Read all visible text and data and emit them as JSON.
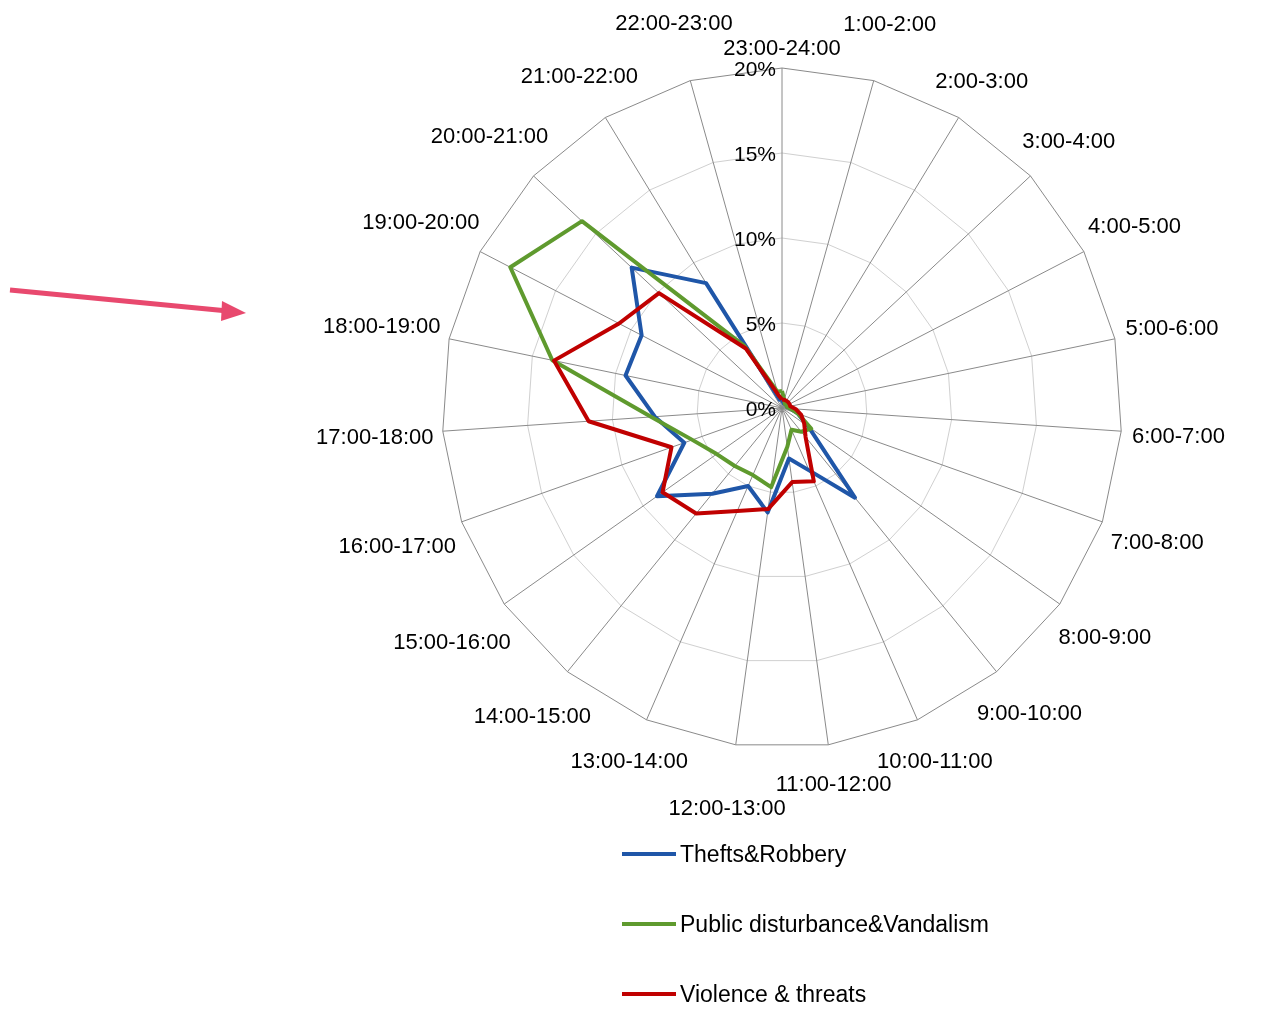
{
  "chart_data": {
    "type": "radar",
    "categories": [
      "23:00-24:00",
      "1:00-2:00",
      "2:00-3:00",
      "3:00-4:00",
      "4:00-5:00",
      "5:00-6:00",
      "6:00-7:00",
      "7:00-8:00",
      "8:00-9:00",
      "9:00-10:00",
      "10:00-11:00",
      "11:00-12:00",
      "12:00-13:00",
      "13:00-14:00",
      "14:00-15:00",
      "15:00-16:00",
      "16:00-17:00",
      "17:00-18:00",
      "18:00-19:00",
      "19:00-20:00",
      "20:00-21:00",
      "21:00-22:00",
      "22:00-23:00"
    ],
    "series": [
      {
        "name": "Thefts&Robbery",
        "color": "#1f56a8",
        "values": [
          0.5,
          0.3,
          0.3,
          0.3,
          0.3,
          0.3,
          0.5,
          1.0,
          1.9,
          6.8,
          4.0,
          3.0,
          6.2,
          5.0,
          6.5,
          9.0,
          6.1,
          7.5,
          9.4,
          9.3,
          12.1,
          8.6,
          0.5
        ]
      },
      {
        "name": "Public disturbance&Vandalism",
        "color": "#5f9a2e",
        "values": [
          1.0,
          0.5,
          0.3,
          0.3,
          0.3,
          0.3,
          0.5,
          1.0,
          2.1,
          1.8,
          1.4,
          2.3,
          4.7,
          4.3,
          4.4,
          4.7,
          5.6,
          7.7,
          13.8,
          18.0,
          16.1,
          4.3,
          1.0
        ]
      },
      {
        "name": "Violence & threats",
        "color": "#c00000",
        "values": [
          0.5,
          0.5,
          0.5,
          0.5,
          0.5,
          0.5,
          0.8,
          1.2,
          1.6,
          2.2,
          4.7,
          4.4,
          6.0,
          6.6,
          8.0,
          8.6,
          6.9,
          11.4,
          13.7,
          10.8,
          9.9,
          4.1,
          0.8
        ]
      }
    ],
    "ylim": [
      0,
      20
    ],
    "yticks": [
      {
        "value": 0,
        "label": "0%"
      },
      {
        "value": 5,
        "label": "5%"
      },
      {
        "value": 10,
        "label": "10%"
      },
      {
        "value": 15,
        "label": "15%"
      },
      {
        "value": 20,
        "label": "20%"
      }
    ],
    "grid": true,
    "legend": "bottom"
  }
}
